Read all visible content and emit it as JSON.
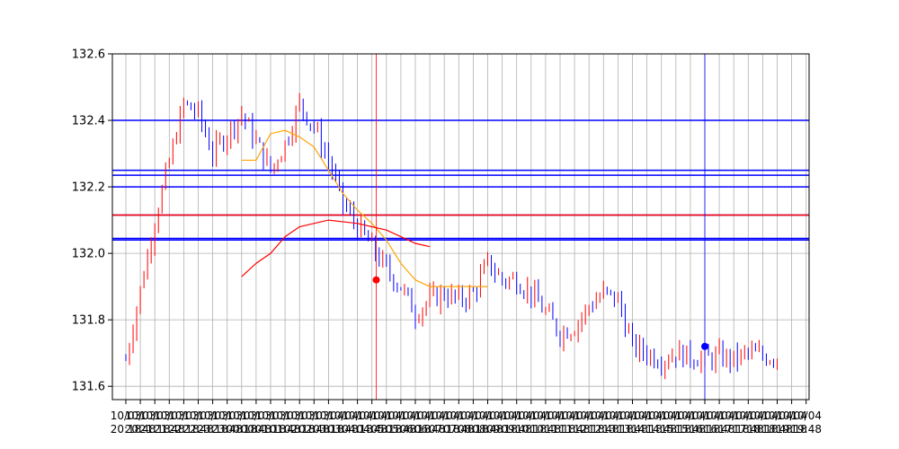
{
  "chart_data": {
    "type": "candlestick",
    "title": "",
    "xlabel": "",
    "ylabel": "",
    "ylim": [
      131.56,
      132.6
    ],
    "yticks": [
      "131.6",
      "131.8",
      "132.0",
      "132.2",
      "132.4",
      "132.6"
    ],
    "xtick_labels_row1": [
      "10/03",
      "10/03",
      "10/03",
      "10/03",
      "10/03",
      "10/03",
      "10/03",
      "10/03",
      "10/03",
      "10/03",
      "10/03",
      "10/03",
      "10/03",
      "10/03",
      "10/04",
      "10/04",
      "10/04",
      "10/04",
      "10/04",
      "10/04",
      "10/04",
      "10/04",
      "10/04",
      "10/04",
      "10/04",
      "10/04",
      "10/04",
      "10/04",
      "10/04",
      "10/04",
      "10/04",
      "10/04",
      "10/04",
      "10/04",
      "10/04",
      "10/04",
      "10/04",
      "10/04",
      "10/04",
      "10/04",
      "10/04",
      "10/04",
      "10/04",
      "10/04",
      "10/04",
      "10/04",
      "10/04",
      "10/04"
    ],
    "xtick_labels_row2": [
      "20:18",
      "20:48",
      "21:18",
      "21:48",
      "22:18",
      "22:48",
      "23:18",
      "23:48",
      "00:18",
      "00:48",
      "01:18",
      "01:48",
      "02:18",
      "02:48",
      "03:18",
      "03:48",
      "04:18",
      "04:48",
      "05:18",
      "05:48",
      "06:18",
      "06:48",
      "07:18",
      "07:48",
      "08:18",
      "08:48",
      "09:18",
      "09:48",
      "10:18",
      "10:48",
      "11:18",
      "11:48",
      "12:18",
      "12:48",
      "13:18",
      "13:48",
      "14:18",
      "14:48",
      "15:18",
      "15:48",
      "16:18",
      "16:48",
      "17:18",
      "17:48",
      "18:18",
      "18:48",
      "19:18",
      "19:48"
    ],
    "ohlc_summary": {
      "x_index": [
        0,
        2,
        4,
        5,
        6,
        8,
        10,
        11,
        12,
        13,
        14,
        15,
        16,
        17,
        18,
        19,
        20,
        21,
        22,
        23,
        24,
        25,
        26,
        27,
        28,
        29,
        30,
        31,
        32,
        33,
        34,
        35,
        36,
        37,
        38,
        39,
        40,
        41,
        42,
        43,
        44,
        45,
        46,
        47,
        48
      ],
      "close": [
        131.68,
        132.1,
        132.45,
        132.42,
        132.3,
        132.42,
        132.25,
        132.33,
        132.45,
        132.38,
        132.28,
        132.15,
        132.08,
        132.02,
        131.95,
        131.9,
        131.82,
        131.86,
        131.88,
        131.86,
        131.88,
        131.97,
        131.92,
        131.92,
        131.88,
        131.82,
        131.76,
        131.78,
        131.84,
        131.88,
        131.86,
        131.72,
        131.7,
        131.68,
        131.7,
        131.69,
        131.68,
        131.69,
        131.68,
        131.7,
        131.69,
        131.69,
        131.68,
        131.69,
        131.68
      ]
    },
    "horizontal_levels": [
      {
        "value": 132.4,
        "color": "#0000ff"
      },
      {
        "value": 132.25,
        "color": "#0000ff"
      },
      {
        "value": 132.235,
        "color": "#0000ff"
      },
      {
        "value": 132.2,
        "color": "#0000ff"
      },
      {
        "value": 132.115,
        "color": "#0000ff"
      },
      {
        "value": 132.115,
        "color": "#ff0000"
      },
      {
        "value": 132.045,
        "color": "#0000ff"
      },
      {
        "value": 132.04,
        "color": "#0000ff"
      }
    ],
    "moving_average_orange": {
      "x": [
        8,
        9,
        10,
        11,
        12,
        13,
        14,
        15,
        16,
        17,
        18,
        19,
        20,
        21,
        22,
        23,
        24,
        25
      ],
      "y": [
        132.28,
        132.28,
        132.36,
        132.37,
        132.35,
        132.32,
        132.25,
        132.18,
        132.13,
        132.09,
        132.04,
        131.97,
        131.92,
        131.9,
        131.9,
        131.9,
        131.9,
        131.9
      ]
    },
    "moving_average_red": {
      "x": [
        8,
        9,
        10,
        11,
        12,
        13,
        14,
        15,
        16,
        17,
        18,
        19,
        20,
        21
      ],
      "y": [
        131.93,
        131.97,
        132.0,
        132.05,
        132.08,
        132.09,
        132.1,
        132.095,
        132.09,
        132.08,
        132.07,
        132.05,
        132.03,
        132.02
      ]
    },
    "markers": [
      {
        "x": 17.3,
        "y": 131.92,
        "color": "#ff0000"
      },
      {
        "x": 40.0,
        "y": 131.72,
        "color": "#0000ff"
      }
    ],
    "vertical_lines": [
      {
        "x": 17.3,
        "color": "#ff0000"
      },
      {
        "x": 40.0,
        "color": "#0000ff"
      }
    ],
    "grid": true
  }
}
